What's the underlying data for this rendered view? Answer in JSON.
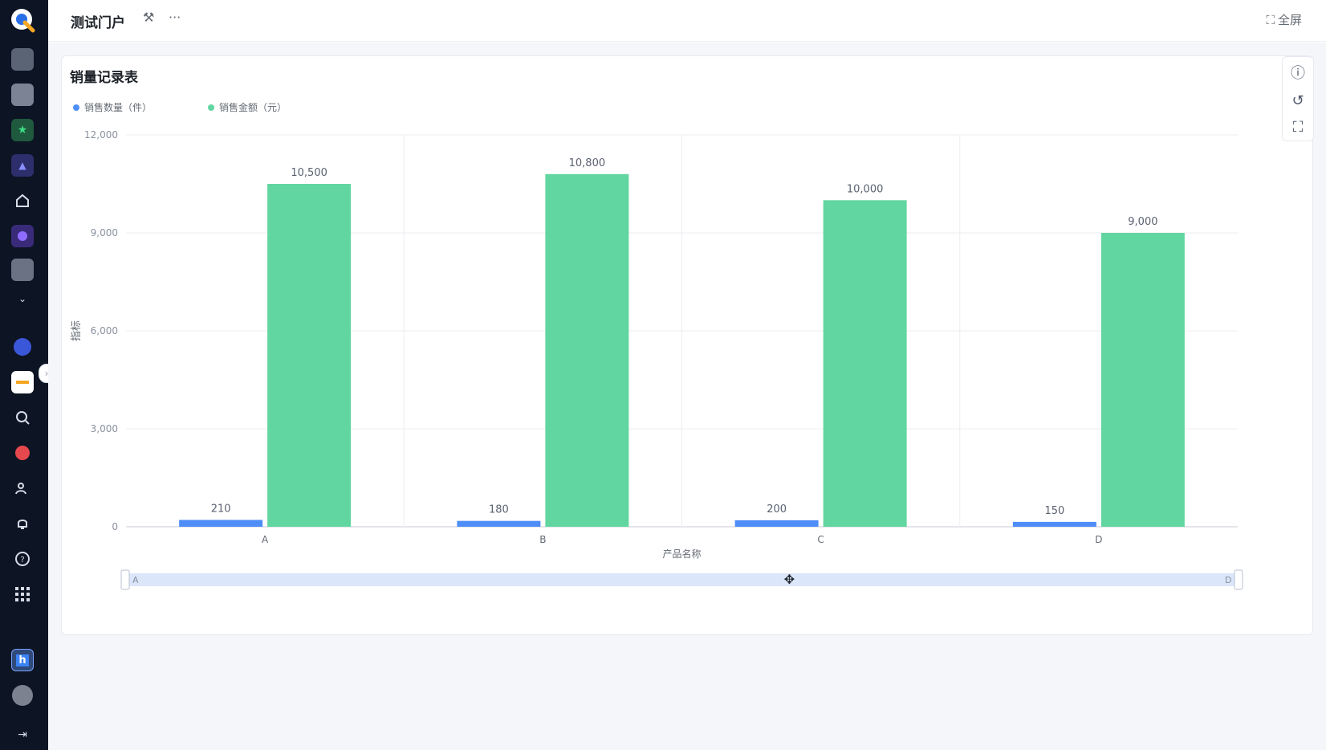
{
  "topbar": {
    "title": "测试门户",
    "fullscreen_label": "全屏"
  },
  "sidebar": {
    "items": [
      {
        "name": "app-logo",
        "color": "#4a90e2"
      },
      {
        "name": "app-1",
        "color": "#5b6475"
      },
      {
        "name": "app-2",
        "color": "#5b6475"
      },
      {
        "name": "app-star",
        "color": "#2e7d5b"
      },
      {
        "name": "app-chart",
        "color": "#3b3f8f"
      },
      {
        "name": "home-icon"
      },
      {
        "name": "app-purple",
        "color": "#6c4fd6"
      },
      {
        "name": "app-3",
        "color": "#5b6475"
      },
      {
        "name": "chevron-down-icon"
      },
      {
        "name": "app-blue-circle",
        "color": "#3b57d9"
      },
      {
        "name": "app-doc",
        "color": "#ffffff"
      },
      {
        "name": "search-icon"
      },
      {
        "name": "app-red",
        "color": "#e5484d"
      },
      {
        "name": "users-icon"
      },
      {
        "name": "bell-icon"
      },
      {
        "name": "help-icon"
      },
      {
        "name": "apps-grid-icon"
      },
      {
        "name": "app-h",
        "color": "#3b82f6"
      },
      {
        "name": "avatar"
      },
      {
        "name": "expand-icon"
      }
    ]
  },
  "card": {
    "title": "销量记录表"
  },
  "chart_data": {
    "type": "bar",
    "categories": [
      "A",
      "B",
      "C",
      "D"
    ],
    "series": [
      {
        "name": "销售数量（件）",
        "color": "#4f8ef7",
        "values": [
          210,
          180,
          200,
          150
        ]
      },
      {
        "name": "销售金额（元）",
        "color": "#62d6a0",
        "values": [
          10500,
          10800,
          10000,
          9000
        ]
      }
    ],
    "data_labels": [
      [
        "210",
        "180",
        "200",
        "150"
      ],
      [
        "10,500",
        "10,800",
        "10,000",
        "9,000"
      ]
    ],
    "y_ticks": [
      "0",
      "3,000",
      "6,000",
      "9,000",
      "12,000"
    ],
    "ylim": [
      0,
      12000
    ],
    "xlabel": "产品名称",
    "ylabel": "指标",
    "slider": {
      "start_label": "A",
      "end_label": "D"
    }
  }
}
